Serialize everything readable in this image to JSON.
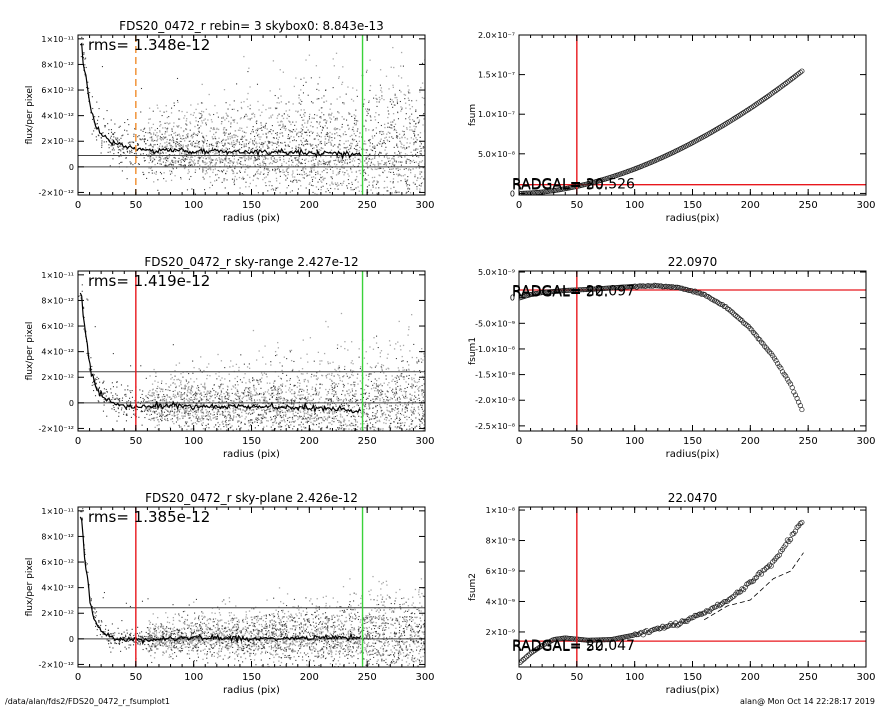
{
  "footer": {
    "path": "/data/alan/fds2/FDS20_0472_r_fsumplot1",
    "stamp": "alan@  Mon Oct 14 22:28:17 2019"
  },
  "colors": {
    "scatter_dark": "#3a3a3a",
    "scatter_light": "#a8a8a8",
    "red": "#e8171d",
    "green": "#3ad23a",
    "orange": "#f08c2c"
  },
  "chart_data": [
    {
      "type": "scatter",
      "title": "FDS20_0472_r rebin= 3    skybox0:  8.843e-13",
      "xlabel": "radius (pix)",
      "ylabel": "flux/per pixel",
      "xlim": [
        0,
        300
      ],
      "ylim": [
        -2.2e-12,
        1.03e-11
      ],
      "xticks": [
        0,
        50,
        100,
        150,
        200,
        250,
        300
      ],
      "xticklabels": [
        "0",
        "50",
        "100",
        "150",
        "200",
        "250",
        "300"
      ],
      "yticks": [
        -2e-12,
        0,
        2e-12,
        4e-12,
        6e-12,
        8e-12,
        1e-11
      ],
      "yticklabels": [
        "-2×10⁻¹²",
        "0",
        "2×10⁻¹²",
        "4×10⁻¹²",
        "6×10⁻¹²",
        "8×10⁻¹²",
        "1×10⁻¹¹"
      ],
      "annotation": "rms= 1.348e-12",
      "hlines": [
        {
          "y": 8.843e-13,
          "color": "#444444"
        },
        {
          "y": 0,
          "color": "#444444"
        }
      ],
      "vlines": [
        {
          "x": 50,
          "color": "orange",
          "dashed": true
        },
        {
          "x": 246,
          "color": "green",
          "dashed": false
        }
      ],
      "profile": {
        "x": [
          3,
          5,
          8,
          10,
          12,
          15,
          20,
          25,
          30,
          35,
          40,
          50,
          60,
          80,
          100,
          150,
          200,
          245
        ],
        "y": [
          9.5e-12,
          8e-12,
          6.3e-12,
          5e-12,
          4e-12,
          3.2e-12,
          2.6e-12,
          2.2e-12,
          1.9e-12,
          1.8e-12,
          1.6e-12,
          1.4e-12,
          1.3e-12,
          1.3e-12,
          1.2e-12,
          1.2e-12,
          1.1e-12,
          1e-12
        ]
      },
      "cloud": {
        "scatter": "high",
        "max_radius": 300
      }
    },
    {
      "type": "line",
      "title": "",
      "xlabel": "radius(pix)",
      "ylabel": "fsum",
      "xlim": [
        0,
        300
      ],
      "ylim": [
        -2e-09,
        2e-07
      ],
      "xticks": [
        0,
        50,
        100,
        150,
        200,
        250,
        300
      ],
      "xticklabels": [
        "0",
        "50",
        "100",
        "150",
        "200",
        "250",
        "300"
      ],
      "yticks": [
        0,
        5e-08,
        1e-07,
        1.5e-07,
        2e-07
      ],
      "yticklabels": [
        "0",
        "5.0×10⁻⁸",
        "1.0×10⁻⁷",
        "1.5×10⁻⁷",
        "2.0×10⁻⁷"
      ],
      "overlay": [
        "RADGAL= 20.526",
        "RADGAL=  50."
      ],
      "overlay_y": 1e-08,
      "vlines": [
        {
          "x": 50,
          "color": "red"
        }
      ],
      "hlines": [
        {
          "y": 1.1e-08,
          "color": "red"
        }
      ],
      "series": {
        "x_start": 1,
        "x_end": 246,
        "y_end": 1.56e-07,
        "power": 1.8
      }
    },
    {
      "type": "scatter",
      "title": "FDS20_0472_r sky-range  2.427e-12",
      "xlabel": "radius (pix)",
      "ylabel": "flux/per pixel",
      "xlim": [
        0,
        300
      ],
      "ylim": [
        -2.2e-12,
        1.03e-11
      ],
      "xticks": [
        0,
        50,
        100,
        150,
        200,
        250,
        300
      ],
      "xticklabels": [
        "0",
        "50",
        "100",
        "150",
        "200",
        "250",
        "300"
      ],
      "yticks": [
        -2e-12,
        0,
        2e-12,
        4e-12,
        6e-12,
        8e-12,
        1e-11
      ],
      "yticklabels": [
        "-2×10⁻¹²",
        "0",
        "2×10⁻¹²",
        "4×10⁻¹²",
        "6×10⁻¹²",
        "8×10⁻¹²",
        "1×10⁻¹¹"
      ],
      "annotation": "rms= 1.419e-12",
      "hlines": [
        {
          "y": 2.427e-12,
          "color": "#444444"
        },
        {
          "y": 0,
          "color": "#444444"
        }
      ],
      "vlines": [
        {
          "x": 50,
          "color": "red",
          "dashed": false
        },
        {
          "x": 246,
          "color": "green",
          "dashed": false
        }
      ],
      "profile": {
        "x": [
          3,
          5,
          8,
          10,
          12,
          15,
          20,
          25,
          30,
          40,
          50,
          60,
          80,
          100,
          150,
          200,
          245
        ],
        "y": [
          8.5e-12,
          6.5e-12,
          4.5e-12,
          3.2e-12,
          2.2e-12,
          1.3e-12,
          6e-13,
          2e-13,
          0,
          -2e-13,
          -3e-13,
          -3e-13,
          -2e-13,
          -3e-13,
          -3e-13,
          -4e-13,
          -6e-13
        ]
      },
      "cloud": {
        "scatter": "medium",
        "max_radius": 300
      }
    },
    {
      "type": "line",
      "title": "22.0970",
      "xlabel": "radius(pix)",
      "ylabel": "fsum1",
      "xlim": [
        0,
        300
      ],
      "ylim": [
        -2.6e-08,
        5.2e-09
      ],
      "xticks": [
        0,
        50,
        100,
        150,
        200,
        250,
        300
      ],
      "xticklabels": [
        "0",
        "50",
        "100",
        "150",
        "200",
        "250",
        "300"
      ],
      "yticks": [
        -2.5e-08,
        -2e-08,
        -1.5e-08,
        -1e-08,
        -5e-09,
        0,
        5e-09
      ],
      "yticklabels": [
        "-2.5×10⁻⁸",
        "-2.0×10⁻⁸",
        "-1.5×10⁻⁸",
        "-1.0×10⁻⁸",
        "-5.0×10⁻⁹",
        "0",
        "5.0×10⁻⁹"
      ],
      "overlay": [
        "RADGAL= 22.097",
        "RADGAL=  50."
      ],
      "overlay_y": 1e-09,
      "vlines": [
        {
          "x": 50,
          "color": "red"
        }
      ],
      "hlines": [
        {
          "y": 1.5e-09,
          "color": "red"
        }
      ],
      "series": {
        "x": [
          1,
          10,
          20,
          40,
          60,
          80,
          100,
          120,
          140,
          160,
          180,
          200,
          220,
          235,
          246
        ],
        "y": [
          0,
          6e-10,
          1e-09,
          1.4e-09,
          1.6e-09,
          1.9e-09,
          2.2e-09,
          2.3e-09,
          1.9e-09,
          6e-10,
          -2e-09,
          -6e-09,
          -1.15e-08,
          -1.7e-08,
          -2.25e-08
        ]
      }
    },
    {
      "type": "scatter",
      "title": "FDS20_0472_r sky-plane  2.426e-12",
      "xlabel": "radius (pix)",
      "ylabel": "flux/per pixel",
      "xlim": [
        0,
        300
      ],
      "ylim": [
        -2.2e-12,
        1.03e-11
      ],
      "xticks": [
        0,
        50,
        100,
        150,
        200,
        250,
        300
      ],
      "xticklabels": [
        "0",
        "50",
        "100",
        "150",
        "200",
        "250",
        "300"
      ],
      "yticks": [
        -2e-12,
        0,
        2e-12,
        4e-12,
        6e-12,
        8e-12,
        1e-11
      ],
      "yticklabels": [
        "-2×10⁻¹²",
        "0",
        "2×10⁻¹²",
        "4×10⁻¹²",
        "6×10⁻¹²",
        "8×10⁻¹²",
        "1×10⁻¹¹"
      ],
      "annotation": "rms= 1.385e-12",
      "hlines": [
        {
          "y": 2.426e-12,
          "color": "#444444"
        },
        {
          "y": 0,
          "color": "#444444"
        }
      ],
      "vlines": [
        {
          "x": 50,
          "color": "red",
          "dashed": false
        },
        {
          "x": 246,
          "color": "green",
          "dashed": false
        }
      ],
      "profile": {
        "x": [
          3,
          5,
          8,
          10,
          12,
          15,
          20,
          25,
          30,
          40,
          50,
          60,
          80,
          100,
          150,
          200,
          245
        ],
        "y": [
          9.5e-12,
          7e-12,
          5e-12,
          3.5e-12,
          2.4e-12,
          1.4e-12,
          7e-13,
          3e-13,
          1e-13,
          -1e-13,
          -1e-13,
          -1e-13,
          0,
          1e-13,
          0,
          1e-13,
          1e-13
        ]
      },
      "cloud": {
        "scatter": "low",
        "max_radius": 300
      }
    },
    {
      "type": "line",
      "title": "22.0470",
      "xlabel": "radius(pix)",
      "ylabel": "fsum2",
      "xlim": [
        0,
        300
      ],
      "ylim": [
        -3e-10,
        1.02e-08
      ],
      "xticks": [
        0,
        50,
        100,
        150,
        200,
        250,
        300
      ],
      "xticklabels": [
        "0",
        "50",
        "100",
        "150",
        "200",
        "250",
        "300"
      ],
      "yticks": [
        2e-09,
        4e-09,
        6e-09,
        8e-09,
        1e-08
      ],
      "yticklabels": [
        "2×10⁻⁹",
        "4×10⁻⁹",
        "6×10⁻⁹",
        "8×10⁻⁹",
        "1×10⁻⁸"
      ],
      "overlay": [
        "RADGAL= 22.047",
        "RADGAL=  50."
      ],
      "overlay_y": 1e-09,
      "vlines": [
        {
          "x": 50,
          "color": "red"
        }
      ],
      "hlines": [
        {
          "y": 1.4e-09,
          "color": "red"
        }
      ],
      "series": {
        "x": [
          1,
          10,
          20,
          30,
          40,
          60,
          80,
          100,
          120,
          140,
          160,
          180,
          200,
          220,
          235,
          246
        ],
        "y": [
          0,
          6e-10,
          1.1e-09,
          1.5e-09,
          1.6e-09,
          1.45e-09,
          1.5e-09,
          1.8e-09,
          2.2e-09,
          2.6e-09,
          3.3e-09,
          4e-09,
          5.2e-09,
          6.6e-09,
          8.2e-09,
          9.4e-09
        ]
      },
      "dashed_series": {
        "x": [
          160,
          180,
          200,
          220,
          235,
          246
        ],
        "y": [
          3e-09,
          3.5e-09,
          4.3e-09,
          5.3e-09,
          6.2e-09,
          7e-09
        ]
      }
    }
  ]
}
